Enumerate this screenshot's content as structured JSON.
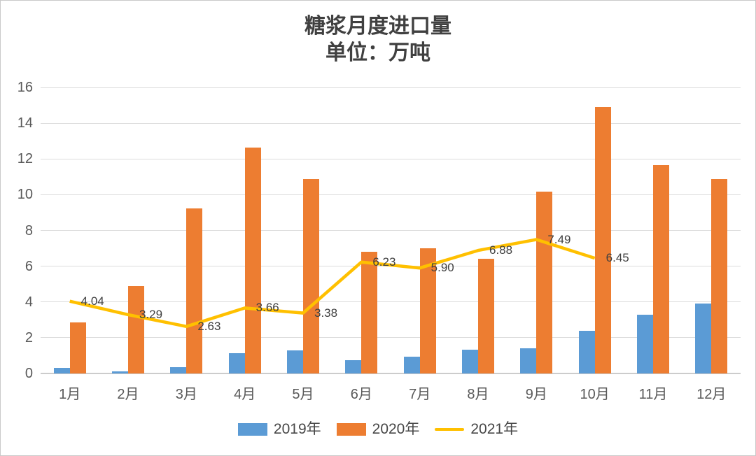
{
  "chart_data": {
    "type": "bar",
    "combo": "grouped-bars-with-line-overlay",
    "title": "糖浆月度进口量",
    "subtitle": "单位：万吨",
    "categories": [
      "1月",
      "2月",
      "3月",
      "4月",
      "5月",
      "6月",
      "7月",
      "8月",
      "9月",
      "10月",
      "11月",
      "12月"
    ],
    "series": [
      {
        "name": "2019年",
        "type": "bar",
        "color": "#5B9BD5",
        "values": [
          0.3,
          0.12,
          0.35,
          1.12,
          1.28,
          0.73,
          0.95,
          1.32,
          1.4,
          2.38,
          3.3,
          3.9
        ]
      },
      {
        "name": "2020年",
        "type": "bar",
        "color": "#ED7D31",
        "values": [
          2.85,
          4.9,
          9.25,
          12.62,
          10.86,
          6.8,
          7.0,
          6.42,
          10.18,
          14.9,
          11.66,
          10.88
        ]
      },
      {
        "name": "2021年",
        "type": "line",
        "color": "#FFC000",
        "values": [
          4.04,
          3.29,
          2.63,
          3.66,
          3.38,
          6.23,
          5.9,
          6.88,
          7.49,
          6.45
        ],
        "point_labels": [
          "4.04",
          "3.29",
          "2.63",
          "3.66",
          "3.38",
          "6.23",
          "5.90",
          "6.88",
          "7.49",
          "6.45"
        ]
      }
    ],
    "xlabel": "",
    "ylabel": "",
    "ylim": [
      0,
      16
    ],
    "ytick_step": 2,
    "yticks": [
      "0",
      "2",
      "4",
      "6",
      "8",
      "10",
      "12",
      "14",
      "16"
    ],
    "grid": true,
    "legend_position": "bottom"
  },
  "colors": {
    "grid": "#DCDCDC",
    "axis_line": "#CCCCCC",
    "axis_text": "#595959",
    "data_label_text": "#404040",
    "title_text": "#404040",
    "legend_text": "#474747",
    "background": "#FFFFFF",
    "border": "#C9C9C9"
  }
}
